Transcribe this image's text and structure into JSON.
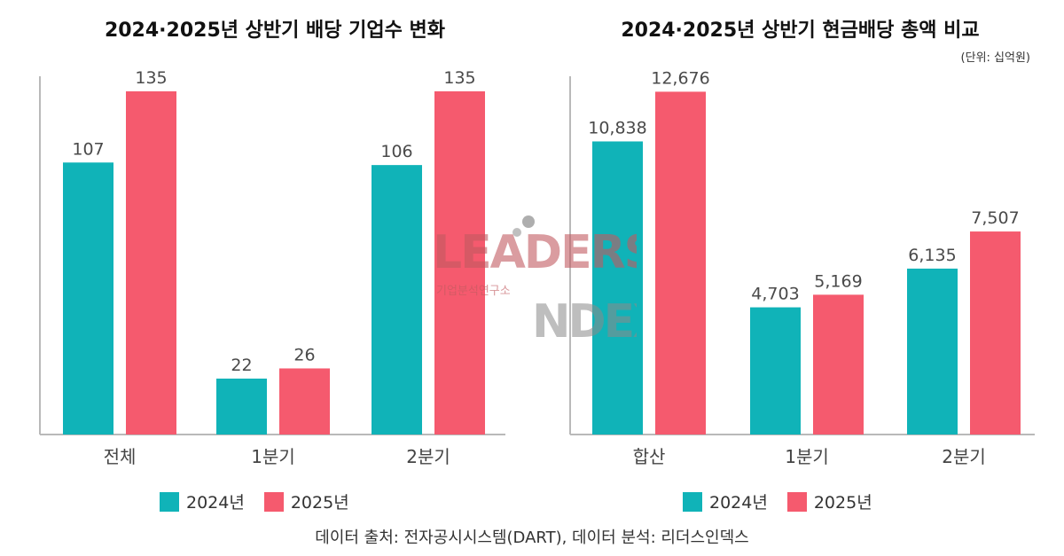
{
  "colors": {
    "y2024": "#10b3b8",
    "y2025": "#f55a6e"
  },
  "legend": {
    "y2024": "2024년",
    "y2025": "2025년"
  },
  "left": {
    "title": "2024·2025년 상반기 배당 기업수 변화"
  },
  "right": {
    "title": "2024·2025년 상반기 현금배당 총액 비교",
    "unit": "(단위: 십억원)"
  },
  "source": "데이터 출처: 전자공시시스템(DART), 데이터 분석: 리더스인덱스",
  "watermark": {
    "line1": "LEADERS",
    "line2": "INDEX",
    "sub": "기업분석연구소"
  },
  "chart_data": [
    {
      "type": "bar",
      "title": "2024·2025년 상반기 배당 기업수 변화",
      "categories": [
        "전체",
        "1분기",
        "2분기"
      ],
      "series": [
        {
          "name": "2024년",
          "values": [
            107,
            22,
            106
          ]
        },
        {
          "name": "2025년",
          "values": [
            135,
            26,
            135
          ]
        }
      ],
      "ylim": [
        0,
        150
      ],
      "grid": false,
      "legend": "bottom"
    },
    {
      "type": "bar",
      "title": "2024·2025년 상반기 현금배당 총액 비교",
      "categories": [
        "합산",
        "1분기",
        "2분기"
      ],
      "series": [
        {
          "name": "2024년",
          "values": [
            10838,
            4703,
            6135
          ]
        },
        {
          "name": "2025년",
          "values": [
            12676,
            5169,
            7507
          ]
        }
      ],
      "ylim": [
        0,
        14100
      ],
      "grid": false,
      "legend": "bottom"
    }
  ]
}
